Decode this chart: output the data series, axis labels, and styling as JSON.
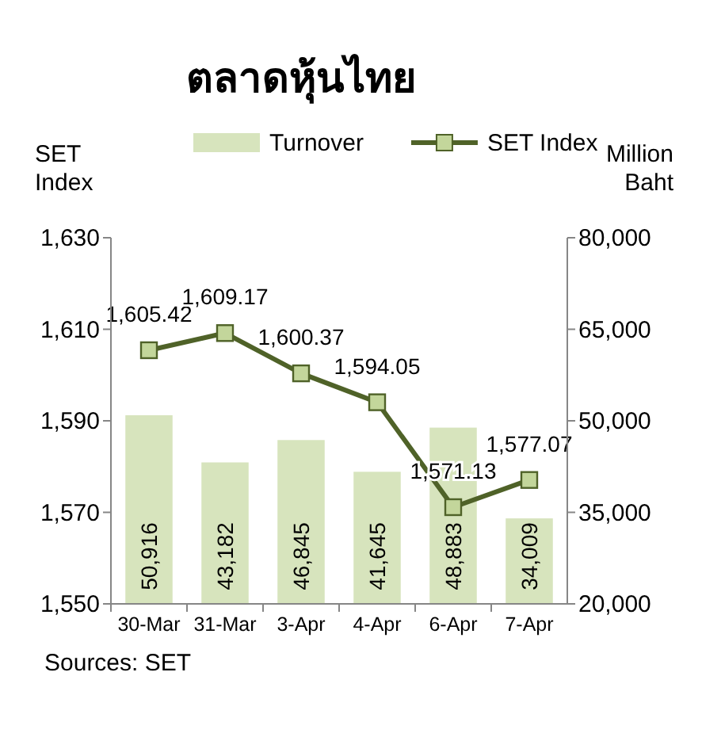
{
  "chart_data": {
    "type": "bar",
    "title": "ตลาดหุ้นไทย",
    "ylabel": "SET Index",
    "y2label": "Million Baht",
    "categories": [
      "30-Mar",
      "31-Mar",
      "3-Apr",
      "4-Apr",
      "6-Apr",
      "7-Apr"
    ],
    "series": [
      {
        "name": "Turnover",
        "axis": "y2",
        "color": "#d7e4bd",
        "values": [
          50916,
          43182,
          46845,
          41645,
          48883,
          34009
        ],
        "value_labels": [
          "50,916",
          "43,182",
          "46,845",
          "41,645",
          "48,883",
          "34,009"
        ]
      },
      {
        "name": "SET Index",
        "type": "line",
        "axis": "y",
        "color": "#4f6228",
        "marker": "square",
        "line_style": "solid",
        "values": [
          1605.42,
          1609.17,
          1600.37,
          1594.05,
          1571.13,
          1577.07
        ],
        "value_labels": [
          "1,605.42",
          "1,609.17",
          "1,600.37",
          "1,594.05",
          "1,571.13",
          "1,577.07"
        ]
      }
    ],
    "ylim": [
      1550,
      1630
    ],
    "yticks": [
      {
        "value": 1550,
        "label": "1,550"
      },
      {
        "value": 1570,
        "label": "1,570"
      },
      {
        "value": 1590,
        "label": "1,590"
      },
      {
        "value": 1610,
        "label": "1,610"
      },
      {
        "value": 1630,
        "label": "1,630"
      }
    ],
    "y2lim": [
      20000,
      80000
    ],
    "y2ticks": [
      {
        "value": 20000,
        "label": "20,000"
      },
      {
        "value": 35000,
        "label": "35,000"
      },
      {
        "value": 50000,
        "label": "50,000"
      },
      {
        "value": 65000,
        "label": "65,000"
      },
      {
        "value": 80000,
        "label": "80,000"
      }
    ],
    "legend": "top",
    "grid": false,
    "annotations": [
      "Sources: SET"
    ]
  }
}
